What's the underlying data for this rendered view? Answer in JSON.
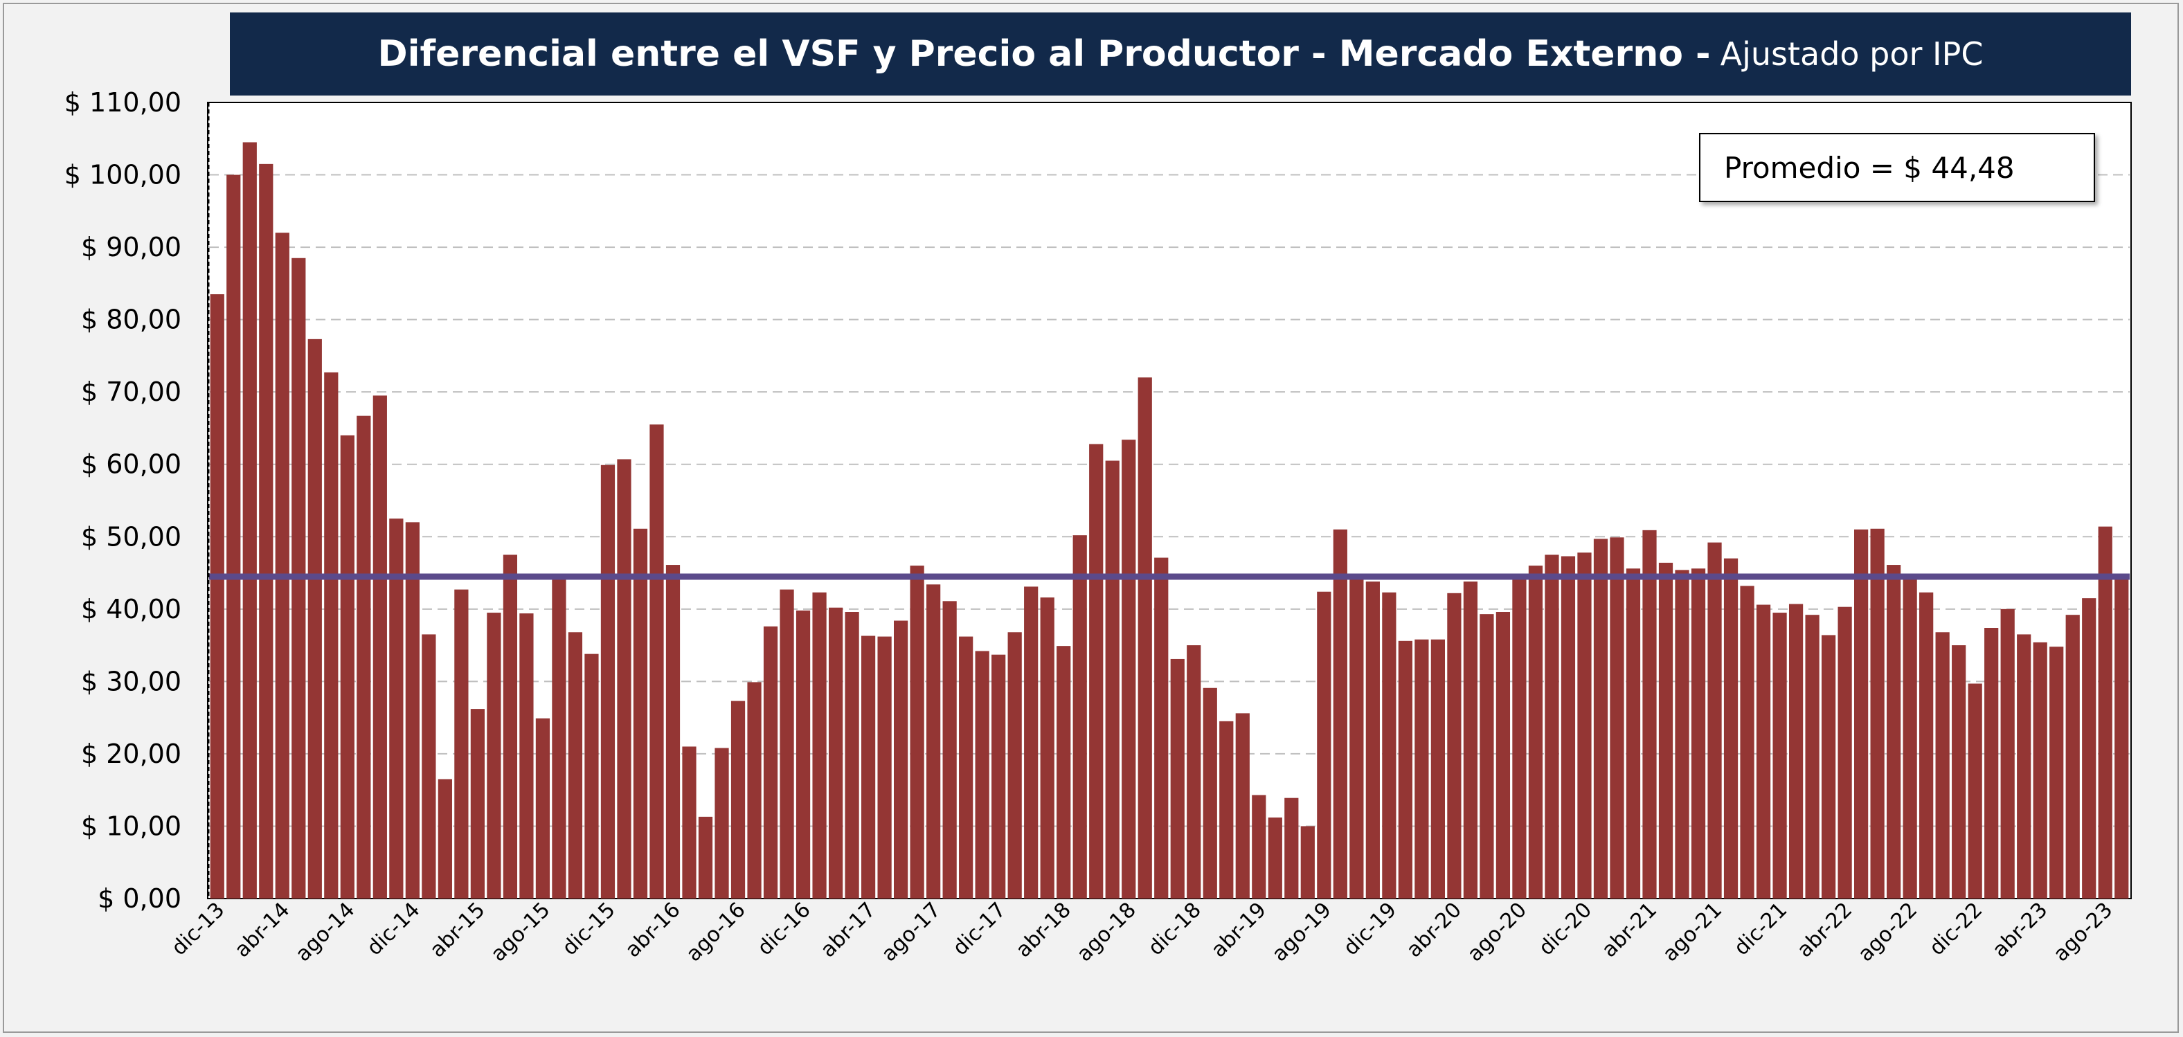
{
  "title": {
    "main": "Diferencial entre el VSF y Precio al Productor - Mercado Externo -",
    "sub": "Ajustado por IPC"
  },
  "annotation": "Promedio = $ 44,48",
  "colors": {
    "bar": "#943634",
    "average_line": "#5b4a8b",
    "title_bg": "#12294a"
  },
  "chart_data": {
    "type": "bar",
    "y_tick_labels": [
      "$ 0,00",
      "$ 10,00",
      "$ 20,00",
      "$ 30,00",
      "$ 40,00",
      "$ 50,00",
      "$ 60,00",
      "$ 70,00",
      "$ 80,00",
      "$ 90,00",
      "$ 100,00",
      "$ 110,00"
    ],
    "ylim": [
      0,
      110
    ],
    "grid": "horizontal-dashed",
    "x_tick_labels": [
      "dic-13",
      "abr-14",
      "ago-14",
      "dic-14",
      "abr-15",
      "ago-15",
      "dic-15",
      "abr-16",
      "ago-16",
      "dic-16",
      "abr-17",
      "ago-17",
      "dic-17",
      "abr-18",
      "ago-18",
      "dic-18",
      "abr-19",
      "ago-19",
      "dic-19",
      "abr-20",
      "ago-20",
      "dic-20",
      "abr-21",
      "ago-21",
      "dic-21",
      "abr-22",
      "ago-22",
      "dic-22",
      "abr-23",
      "ago-23"
    ],
    "x_tick_every": 4,
    "average": 44.48,
    "series": [
      {
        "values": [
          83.5,
          100,
          104.5,
          101.5,
          92,
          88.5,
          77.3,
          72.7,
          64,
          66.7,
          69.5,
          52.5,
          52,
          36.5,
          16.5,
          42.7,
          26.2,
          39.5,
          47.5,
          39.4,
          24.9,
          44.6,
          36.8,
          33.8,
          59.9,
          60.7,
          51.1,
          65.5,
          46.1,
          21,
          11.3,
          20.8,
          27.3,
          29.9,
          37.6,
          42.7,
          39.8,
          42.3,
          40.2,
          39.6,
          36.3,
          36.2,
          38.4,
          46,
          43.4,
          41.1,
          36.2,
          34.2,
          33.7,
          36.8,
          43.1,
          41.6,
          34.9,
          50.2,
          62.8,
          60.5,
          63.4,
          72,
          47.1,
          33.1,
          35,
          29.1,
          24.5,
          25.6,
          14.3,
          11.2,
          13.9,
          10,
          42.4,
          51,
          44.8,
          43.8,
          42.3,
          35.6,
          35.8,
          35.8,
          42.2,
          43.8,
          39.3,
          39.6,
          44.1,
          46,
          47.5,
          47.3,
          47.8,
          49.7,
          49.9,
          45.6,
          50.9,
          46.4,
          45.4,
          45.6,
          49.2,
          47,
          43.2,
          40.6,
          39.5,
          40.7,
          39.2,
          36.4,
          40.3,
          51,
          51.1,
          46.1,
          44.5,
          42.3,
          36.8,
          35,
          29.7,
          37.4,
          40,
          36.5,
          35.4,
          34.8,
          39.2,
          41.5,
          51.4,
          44.3
        ]
      }
    ]
  }
}
